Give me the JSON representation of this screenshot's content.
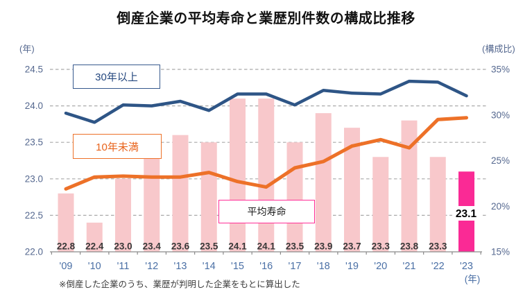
{
  "title": "倒産企業の平均寿命と業歴別件数の構成比推移",
  "footnote": "※倒産した企業のうち、業歴が判明した企業をもとに算出した",
  "axes": {
    "left_unit": "(年)",
    "right_unit": "(構成比)",
    "x_unit": "(年)",
    "left_tick_labels": [
      "24.5",
      "24.0",
      "23.5",
      "23.0",
      "22.5",
      "22.0"
    ],
    "right_tick_labels": [
      "35%",
      "30%",
      "25%",
      "20%",
      "15%"
    ]
  },
  "legend": {
    "items": [
      {
        "id": "30plus",
        "label": "30年以上",
        "border_color": "#35588C",
        "text_color": "#24477E"
      },
      {
        "id": "under10",
        "label": "10年未満",
        "border_color": "#ED7128",
        "text_color": "#E8621A"
      },
      {
        "id": "avg",
        "label": "平均寿命",
        "border_color": "#FF2D96",
        "text_color": "#1A1A1A"
      }
    ]
  },
  "chart_data": {
    "type": "combo-bar-line",
    "categories": [
      "'09",
      "'10",
      "'11",
      "'12",
      "'13",
      "'14",
      "'15",
      "'16",
      "'17",
      "'18",
      "'19",
      "'20",
      "'21",
      "'22",
      "'23"
    ],
    "bar_series": {
      "name": "平均寿命",
      "axis": "left",
      "unit": "年",
      "values": [
        22.8,
        22.4,
        23.0,
        23.4,
        23.6,
        23.5,
        24.1,
        24.1,
        23.5,
        23.9,
        23.7,
        23.3,
        23.8,
        23.3,
        23.1
      ],
      "highlight_index": 14,
      "highlight_label": "23.1"
    },
    "line_series": [
      {
        "name": "30年以上",
        "axis": "right",
        "unit": "%",
        "values": [
          30.2,
          29.2,
          31.1,
          31.0,
          31.5,
          30.5,
          32.3,
          32.3,
          31.1,
          32.7,
          32.4,
          32.3,
          33.7,
          33.6,
          32.1
        ]
      },
      {
        "name": "10年未満",
        "axis": "right",
        "unit": "%",
        "values": [
          21.9,
          23.2,
          23.3,
          23.2,
          23.2,
          23.7,
          22.7,
          22.1,
          24.2,
          24.9,
          26.6,
          27.3,
          26.4,
          29.5,
          29.7
        ]
      }
    ],
    "left_axis": {
      "label": "(年)",
      "min": 22.0,
      "max": 24.5,
      "step": 0.5,
      "ticks": [
        24.5,
        24.0,
        23.5,
        23.0,
        22.5,
        22.0
      ]
    },
    "right_axis": {
      "label": "(構成比)",
      "min": 15,
      "max": 35,
      "ticks": [
        35,
        30,
        25,
        20,
        15
      ],
      "format": "percent"
    },
    "grid": "dashed-horizontal",
    "legend_position": "floating-boxes"
  },
  "colors": {
    "bar": "#F8C8CB",
    "bar_highlight": "#FA2A95",
    "line_30plus": "#2E5586",
    "line_under10": "#ED7128",
    "grid": "#A9A9A9",
    "axis": "#8A8A8A",
    "tick_label": "#55688F",
    "year_label": "#4A6FA5",
    "bar_label": "#383838",
    "highlight_label": "#000000",
    "title": "#111111",
    "footnote": "#3B3B3B"
  }
}
